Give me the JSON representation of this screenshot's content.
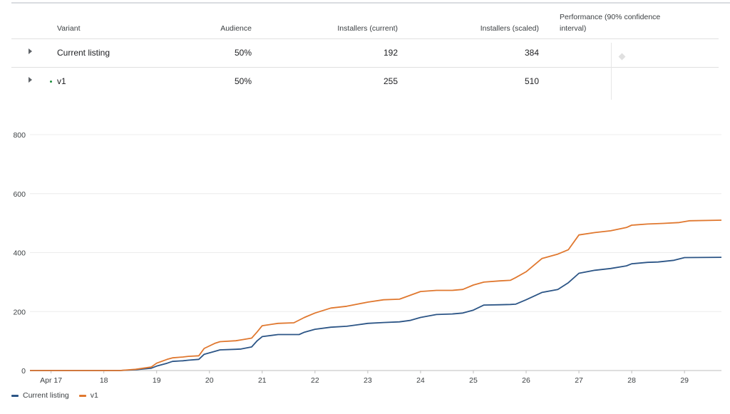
{
  "table": {
    "headers": {
      "variant": "Variant",
      "audience": "Audience",
      "installers_current": "Installers (current)",
      "installers_scaled": "Installers (scaled)",
      "performance": "Performance (90% confidence interval)"
    },
    "rows": [
      {
        "variant": "Current listing",
        "audience": "50%",
        "installers_current": "192",
        "installers_scaled": "384"
      },
      {
        "variant": "v1",
        "audience": "50%",
        "installers_current": "255",
        "installers_scaled": "510"
      }
    ]
  },
  "colors": {
    "current": "#2c5586",
    "v1": "#e0782f",
    "grid": "#ececec",
    "axis": "#bdbdbd"
  },
  "chart_data": {
    "type": "line",
    "title": "",
    "xlabel": "",
    "ylabel": "",
    "ylim": [
      0,
      800
    ],
    "xlim": [
      16.6,
      29.7
    ],
    "yticks": [
      0,
      200,
      400,
      600,
      800
    ],
    "xticks": [
      {
        "value": 17,
        "label": "Apr 17"
      },
      {
        "value": 18,
        "label": "18"
      },
      {
        "value": 19,
        "label": "19"
      },
      {
        "value": 20,
        "label": "20"
      },
      {
        "value": 21,
        "label": "21"
      },
      {
        "value": 22,
        "label": "22"
      },
      {
        "value": 23,
        "label": "23"
      },
      {
        "value": 24,
        "label": "24"
      },
      {
        "value": 25,
        "label": "25"
      },
      {
        "value": 26,
        "label": "26"
      },
      {
        "value": 27,
        "label": "27"
      },
      {
        "value": 28,
        "label": "28"
      },
      {
        "value": 29,
        "label": "29"
      }
    ],
    "grid": true,
    "legend": "bottom-left",
    "series": [
      {
        "name": "Current listing",
        "x": [
          16.6,
          18.3,
          18.6,
          18.9,
          19.0,
          19.2,
          19.3,
          19.5,
          19.6,
          19.8,
          19.9,
          20.1,
          20.2,
          20.5,
          20.6,
          20.8,
          20.9,
          21.0,
          21.3,
          21.7,
          21.8,
          22.0,
          22.3,
          22.6,
          22.8,
          23.0,
          23.3,
          23.6,
          23.8,
          24.0,
          24.3,
          24.6,
          24.8,
          25.0,
          25.2,
          25.5,
          25.7,
          25.8,
          26.0,
          26.3,
          26.6,
          26.8,
          27.0,
          27.3,
          27.6,
          27.9,
          28.0,
          28.3,
          28.5,
          28.8,
          29.0,
          29.7
        ],
        "values": [
          0,
          0,
          3,
          8,
          15,
          25,
          31,
          33,
          35,
          38,
          55,
          65,
          70,
          72,
          73,
          80,
          100,
          115,
          122,
          122,
          130,
          140,
          147,
          150,
          155,
          160,
          163,
          165,
          170,
          180,
          190,
          192,
          195,
          205,
          222,
          223,
          224,
          225,
          240,
          265,
          275,
          298,
          330,
          340,
          346,
          355,
          362,
          367,
          368,
          374,
          383,
          384
        ]
      },
      {
        "name": "v1",
        "x": [
          16.6,
          18.3,
          18.6,
          18.9,
          19.0,
          19.2,
          19.3,
          19.5,
          19.6,
          19.8,
          19.9,
          20.1,
          20.2,
          20.5,
          20.6,
          20.8,
          20.9,
          21.0,
          21.3,
          21.6,
          21.8,
          22.0,
          22.3,
          22.6,
          22.8,
          23.0,
          23.3,
          23.6,
          23.8,
          24.0,
          24.3,
          24.6,
          24.8,
          25.0,
          25.2,
          25.5,
          25.7,
          25.8,
          26.0,
          26.3,
          26.6,
          26.8,
          27.0,
          27.3,
          27.6,
          27.9,
          28.0,
          28.3,
          28.6,
          28.9,
          29.1,
          29.7
        ],
        "values": [
          0,
          0,
          4,
          12,
          25,
          38,
          43,
          46,
          48,
          50,
          75,
          92,
          98,
          101,
          104,
          110,
          130,
          152,
          160,
          162,
          180,
          195,
          212,
          218,
          225,
          232,
          240,
          242,
          255,
          268,
          272,
          272,
          275,
          290,
          300,
          304,
          306,
          315,
          335,
          380,
          395,
          410,
          460,
          468,
          474,
          485,
          493,
          497,
          499,
          502,
          508,
          510
        ]
      }
    ]
  }
}
